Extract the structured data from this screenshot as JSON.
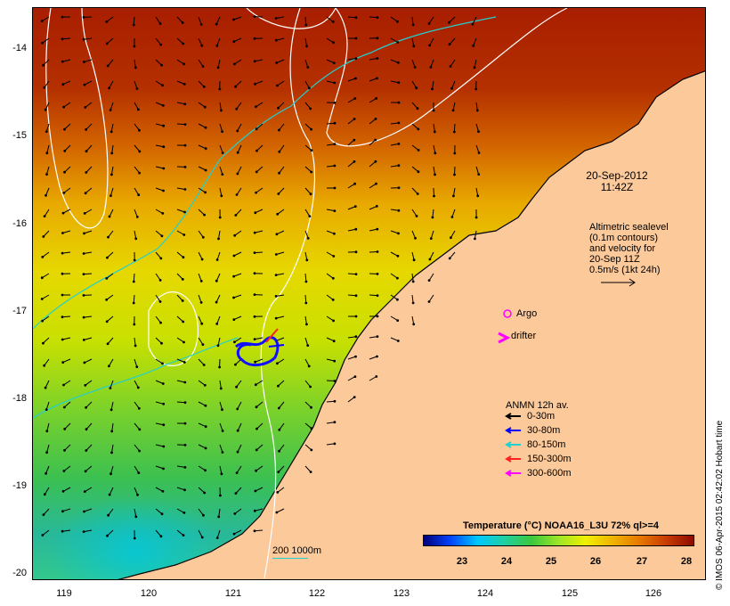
{
  "map": {
    "y_ticks": [
      "-14",
      "-15",
      "-16",
      "-17",
      "-18",
      "-19",
      "-20"
    ],
    "x_ticks": [
      "119",
      "120",
      "121",
      "122",
      "123",
      "124",
      "125",
      "126"
    ]
  },
  "annotations": {
    "date": "20-Sep-2012",
    "time": "11:42Z",
    "altimetry_lines": [
      "Altimetric sealevel",
      "(0.1m contours)",
      "and velocity for",
      "20-Sep 11Z",
      "0.5m/s (1kt 24h)"
    ],
    "argo_label": "Argo",
    "drifter_label": "drifter",
    "anmn_title": "ANMN 12h av.",
    "anmn_depths": [
      {
        "label": "0-30m",
        "color": "#000000"
      },
      {
        "label": "30-80m",
        "color": "#0000ff"
      },
      {
        "label": "80-150m",
        "color": "#22d0d0"
      },
      {
        "label": "150-300m",
        "color": "#ff2020"
      },
      {
        "label": "300-600m",
        "color": "#ff00ff"
      }
    ],
    "scale_label": "200  1000m"
  },
  "colorbar": {
    "title": "Temperature (°C) NOAA16_L3U 72% ql>=4",
    "ticks": [
      "23",
      "24",
      "25",
      "26",
      "27",
      "28"
    ],
    "colors": [
      "#00007a",
      "#0044ff",
      "#00c8ff",
      "#20d0a0",
      "#3cc83c",
      "#9ce628",
      "#f0f000",
      "#f0b400",
      "#e67800",
      "#c83c00",
      "#8c0a00"
    ]
  },
  "credit": "© IMOS 06-Apr-2015 02:42:02 Hobart time",
  "colors": {
    "land": "#fcc99a",
    "coast": "#000000",
    "contour": "#ffffff",
    "isobath": "#22d0d0"
  }
}
